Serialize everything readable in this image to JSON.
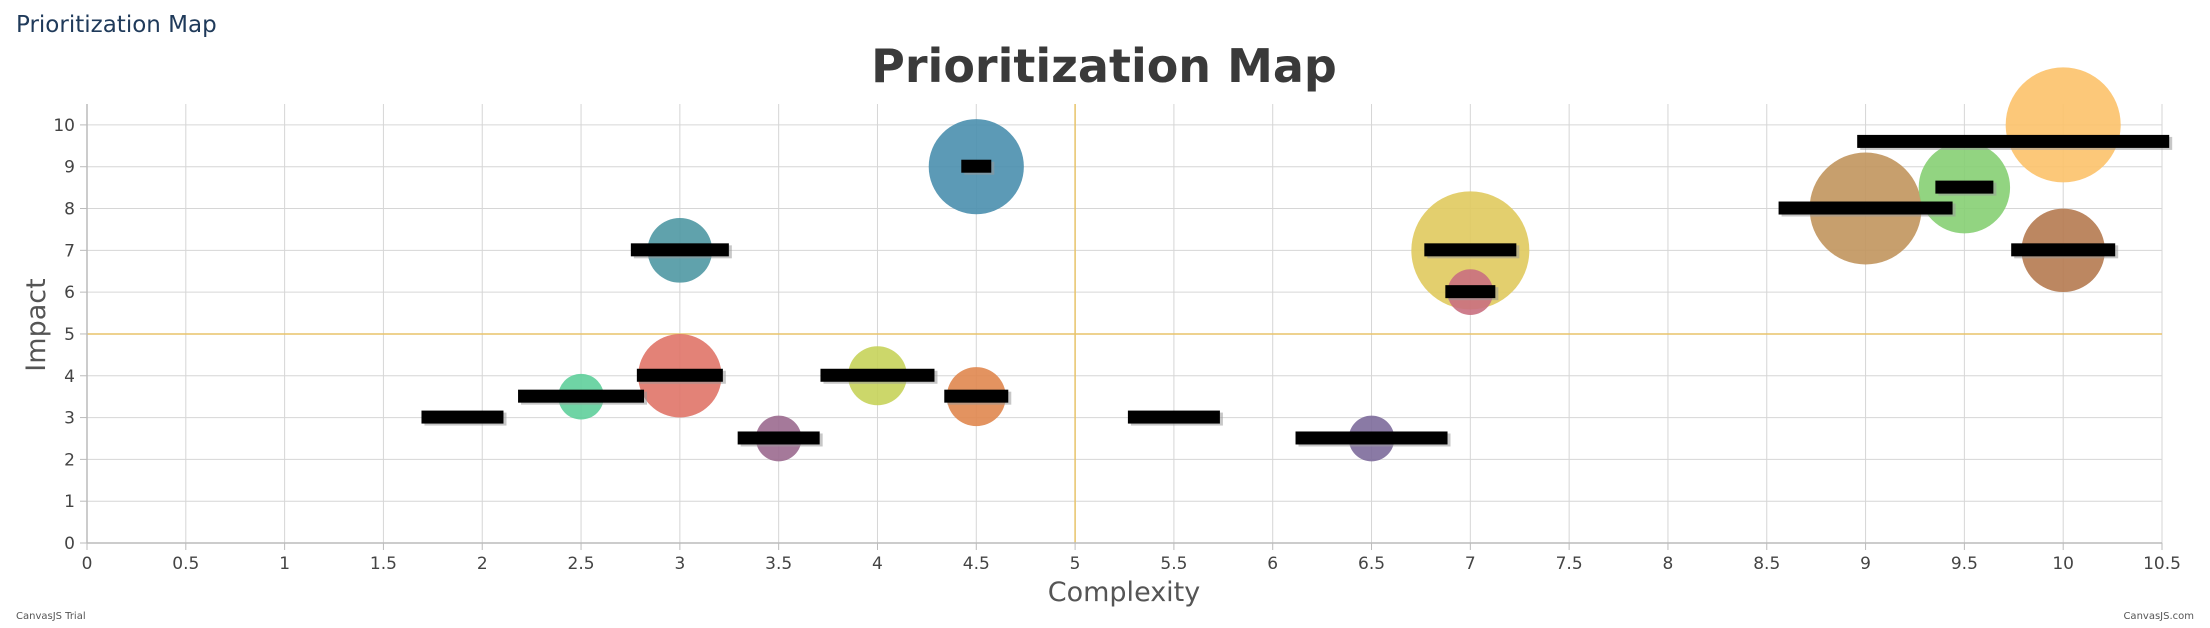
{
  "page": {
    "heading": "Prioritization Map",
    "watermark_left": "CanvasJS Trial",
    "watermark_right": "CanvasJS.com"
  },
  "chart_data": {
    "type": "scatter",
    "variant": "bubble",
    "title": "Prioritization Map",
    "xlabel": "Complexity",
    "ylabel": "Impact",
    "xlim": [
      0,
      10.5
    ],
    "ylim": [
      0,
      10.5
    ],
    "xticks": [
      0,
      0.5,
      1,
      1.5,
      2,
      2.5,
      3,
      3.5,
      4,
      4.5,
      5,
      5.5,
      6,
      6.5,
      7,
      7.5,
      8,
      8.5,
      9,
      9.5,
      10,
      10.5
    ],
    "yticks": [
      0,
      1,
      2,
      3,
      4,
      5,
      6,
      7,
      8,
      9,
      10
    ],
    "grid": true,
    "reference_lines": {
      "x": 5,
      "y": 5,
      "color": "#e8c36a"
    },
    "points": [
      {
        "x": 1.9,
        "y": 3,
        "z": 0,
        "color": "#ffffff"
      },
      {
        "x": 2.5,
        "y": 3.5,
        "z": 3,
        "color": "#5fcf9b"
      },
      {
        "x": 3,
        "y": 7,
        "z": 6,
        "color": "#4f98a3"
      },
      {
        "x": 3,
        "y": 4,
        "z": 10,
        "color": "#e07468"
      },
      {
        "x": 3.5,
        "y": 2.5,
        "z": 3,
        "color": "#9b6a8f"
      },
      {
        "x": 4,
        "y": 4,
        "z": 5,
        "color": "#c6d35a"
      },
      {
        "x": 4.5,
        "y": 9,
        "z": 13,
        "color": "#4a8fae"
      },
      {
        "x": 4.5,
        "y": 3.5,
        "z": 5,
        "color": "#e0874f"
      },
      {
        "x": 5.5,
        "y": 3,
        "z": 0,
        "color": "#ffffff"
      },
      {
        "x": 6.5,
        "y": 2.5,
        "z": 3,
        "color": "#7d6b9b"
      },
      {
        "x": 7,
        "y": 7,
        "z": 20,
        "color": "#e0ca5e"
      },
      {
        "x": 7,
        "y": 6,
        "z": 3,
        "color": "#c96f7f"
      },
      {
        "x": 9,
        "y": 8,
        "z": 18,
        "color": "#c1955d"
      },
      {
        "x": 9.5,
        "y": 8.5,
        "z": 12,
        "color": "#86cf73"
      },
      {
        "x": 10,
        "y": 10,
        "z": 19,
        "color": "#fcc26a"
      },
      {
        "x": 10,
        "y": 7,
        "z": 10,
        "color": "#b57a50"
      }
    ]
  }
}
